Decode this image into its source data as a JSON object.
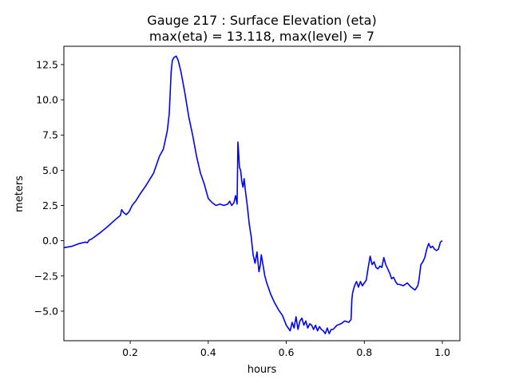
{
  "chart_data": {
    "type": "line",
    "title": "Gauge 217 : Surface Elevation (eta)",
    "subtitle": "max(eta) =  13.118,    max(level) = 7",
    "xlabel": "hours",
    "ylabel": "meters",
    "xlim": [
      0.03,
      1.045
    ],
    "ylim": [
      -7.1,
      13.8
    ],
    "xticks": [
      0.2,
      0.4,
      0.6,
      0.8,
      1.0
    ],
    "xtick_labels": [
      "0.2",
      "0.4",
      "0.6",
      "0.8",
      "1.0"
    ],
    "yticks": [
      -5.0,
      -2.5,
      0.0,
      2.5,
      5.0,
      7.5,
      10.0,
      12.5
    ],
    "ytick_labels": [
      "−5.0",
      "−2.5",
      "0.0",
      "2.5",
      "5.0",
      "7.5",
      "10.0",
      "12.5"
    ],
    "grid": false,
    "series": [
      {
        "color": "#0000ff",
        "x": [
          0.03,
          0.05,
          0.07,
          0.085,
          0.09,
          0.095,
          0.1,
          0.12,
          0.14,
          0.16,
          0.175,
          0.178,
          0.183,
          0.19,
          0.197,
          0.205,
          0.215,
          0.225,
          0.24,
          0.26,
          0.275,
          0.285,
          0.295,
          0.3,
          0.305,
          0.308,
          0.312,
          0.318,
          0.323,
          0.33,
          0.34,
          0.35,
          0.36,
          0.37,
          0.38,
          0.39,
          0.4,
          0.41,
          0.42,
          0.43,
          0.44,
          0.45,
          0.455,
          0.46,
          0.466,
          0.47,
          0.474,
          0.476,
          0.478,
          0.48,
          0.483,
          0.486,
          0.489,
          0.492,
          0.495,
          0.5,
          0.505,
          0.51,
          0.515,
          0.52,
          0.525,
          0.53,
          0.533,
          0.536,
          0.539,
          0.542,
          0.545,
          0.55,
          0.555,
          0.56,
          0.57,
          0.58,
          0.59,
          0.6,
          0.605,
          0.61,
          0.615,
          0.62,
          0.625,
          0.63,
          0.635,
          0.64,
          0.645,
          0.65,
          0.655,
          0.66,
          0.665,
          0.67,
          0.675,
          0.68,
          0.685,
          0.69,
          0.695,
          0.7,
          0.705,
          0.71,
          0.715,
          0.72,
          0.73,
          0.74,
          0.75,
          0.76,
          0.766,
          0.768,
          0.77,
          0.775,
          0.78,
          0.785,
          0.79,
          0.795,
          0.8,
          0.805,
          0.81,
          0.815,
          0.82,
          0.825,
          0.83,
          0.835,
          0.84,
          0.845,
          0.85,
          0.855,
          0.86,
          0.865,
          0.87,
          0.875,
          0.88,
          0.885,
          0.89,
          0.9,
          0.91,
          0.92,
          0.93,
          0.937,
          0.94,
          0.945,
          0.95,
          0.955,
          0.96,
          0.965,
          0.97,
          0.975,
          0.98,
          0.985,
          0.99,
          0.995,
          1.0
        ],
        "y": [
          -0.5,
          -0.4,
          -0.2,
          -0.1,
          -0.15,
          0.05,
          0.1,
          0.5,
          0.95,
          1.45,
          1.8,
          2.2,
          2.0,
          1.85,
          2.05,
          2.5,
          2.85,
          3.3,
          3.9,
          4.8,
          6.0,
          6.5,
          7.8,
          9.0,
          12.0,
          12.8,
          13.0,
          13.1,
          12.8,
          12.0,
          10.5,
          8.8,
          7.5,
          6.0,
          4.8,
          4.0,
          3.0,
          2.7,
          2.5,
          2.6,
          2.5,
          2.6,
          2.8,
          2.5,
          2.7,
          3.2,
          2.6,
          7.0,
          6.2,
          5.2,
          5.0,
          4.2,
          3.8,
          4.4,
          3.6,
          2.5,
          1.2,
          0.3,
          -1.0,
          -1.6,
          -0.8,
          -2.2,
          -1.8,
          -1.0,
          -1.5,
          -2.0,
          -2.5,
          -3.0,
          -3.4,
          -3.8,
          -4.4,
          -4.9,
          -5.3,
          -6.0,
          -6.2,
          -6.4,
          -5.8,
          -6.2,
          -5.4,
          -6.3,
          -5.7,
          -5.5,
          -6.0,
          -5.7,
          -6.2,
          -5.9,
          -6.0,
          -6.3,
          -6.0,
          -6.4,
          -6.1,
          -6.3,
          -6.4,
          -6.6,
          -6.2,
          -6.6,
          -6.3,
          -6.3,
          -6.0,
          -5.9,
          -5.7,
          -5.8,
          -5.6,
          -4.2,
          -3.7,
          -3.2,
          -2.9,
          -3.3,
          -2.9,
          -3.2,
          -3.0,
          -2.8,
          -1.9,
          -1.1,
          -1.7,
          -1.5,
          -1.9,
          -2.0,
          -1.8,
          -1.9,
          -1.2,
          -1.7,
          -2.0,
          -2.3,
          -2.7,
          -2.6,
          -2.9,
          -3.1,
          -3.1,
          -3.2,
          -3.0,
          -3.3,
          -3.5,
          -3.2,
          -2.8,
          -1.7,
          -1.5,
          -1.2,
          -0.6,
          -0.2,
          -0.5,
          -0.4,
          -0.6,
          -0.7,
          -0.6,
          -0.1,
          0.0
        ]
      }
    ]
  }
}
